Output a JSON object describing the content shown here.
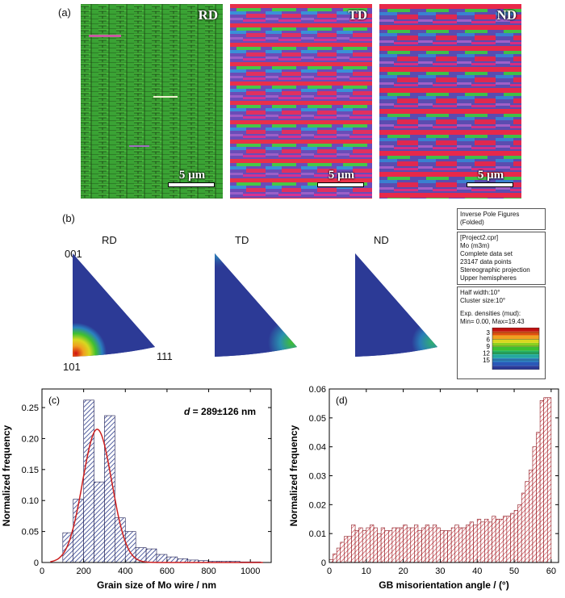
{
  "panel_a": {
    "label": "(a)",
    "maps": [
      {
        "name": "RD",
        "scale": "5 μm"
      },
      {
        "name": "TD",
        "scale": "5 μm"
      },
      {
        "name": "ND",
        "scale": "5 μm"
      }
    ]
  },
  "panel_b": {
    "label": "(b)",
    "ipf": [
      {
        "title": "RD",
        "corner_top": "001",
        "corner_left": "101",
        "corner_right": "111"
      },
      {
        "title": "TD"
      },
      {
        "title": "ND"
      }
    ],
    "legend": {
      "box1": [
        "Inverse Pole Figures",
        "(Folded)"
      ],
      "box2": [
        "[Project2.cpr]",
        "Mo (m3m)",
        "Complete data set",
        "23147 data points",
        "Stereographic projection",
        "Upper hemispheres"
      ],
      "box3": [
        "Half width:10°",
        "Cluster size:10°",
        "",
        "Exp. densities (mud):",
        "Min= 0.00, Max=19.43"
      ],
      "scale_ticks": [
        "3",
        "6",
        "9",
        "12",
        "15"
      ],
      "scale_colors": [
        "#2c3a96",
        "#2a58b8",
        "#2b82c0",
        "#25a7a0",
        "#25b060",
        "#3cc030",
        "#8ad020",
        "#d8d820",
        "#f0a020",
        "#e05010",
        "#c01010"
      ]
    }
  },
  "chart_data": [
    {
      "type": "bar",
      "panel_label": "(c)",
      "annotation_var": "d",
      "annotation_text": " = 289±126 nm",
      "xlabel": "Grain size of Mo wire / nm",
      "ylabel": "Normalized frequency",
      "xlim": [
        0,
        1100
      ],
      "ylim": [
        0,
        0.28
      ],
      "xticks": [
        0,
        200,
        400,
        600,
        800,
        1000
      ],
      "yticks": [
        0,
        0.05,
        0.1,
        0.15,
        0.2,
        0.25
      ],
      "ytick_labels": [
        "0",
        "0.05",
        "0.10",
        "0.15",
        "0.20",
        "0.25"
      ],
      "bin_width": 50,
      "bin_centers": [
        125,
        175,
        225,
        275,
        325,
        375,
        425,
        475,
        525,
        575,
        625,
        675,
        725,
        775,
        825,
        875,
        925,
        975,
        1025
      ],
      "values": [
        0.048,
        0.102,
        0.262,
        0.13,
        0.237,
        0.072,
        0.05,
        0.024,
        0.022,
        0.013,
        0.009,
        0.006,
        0.004,
        0.003,
        0.002,
        0.002,
        0.002,
        0.001,
        0.001
      ],
      "fit_curve": {
        "type": "gaussian",
        "mean": 265,
        "sd": 70,
        "peak": 0.215
      },
      "colors": {
        "bar": "#2b3a8a",
        "fit": "#cc2020"
      }
    },
    {
      "type": "bar",
      "panel_label": "(d)",
      "xlabel": "GB misorientation angle / (°)",
      "ylabel": "Normalized frequency",
      "xlim": [
        0,
        62
      ],
      "ylim": [
        0,
        0.06
      ],
      "xticks": [
        0,
        10,
        20,
        30,
        40,
        50,
        60
      ],
      "yticks": [
        0,
        0.01,
        0.02,
        0.03,
        0.04,
        0.05,
        0.06
      ],
      "ytick_labels": [
        "0",
        "0.01",
        "0.02",
        "0.03",
        "0.04",
        "0.05",
        "0.06"
      ],
      "bin_width": 1,
      "bin_centers": [
        0.5,
        1.5,
        2.5,
        3.5,
        4.5,
        5.5,
        6.5,
        7.5,
        8.5,
        9.5,
        10.5,
        11.5,
        12.5,
        13.5,
        14.5,
        15.5,
        16.5,
        17.5,
        18.5,
        19.5,
        20.5,
        21.5,
        22.5,
        23.5,
        24.5,
        25.5,
        26.5,
        27.5,
        28.5,
        29.5,
        30.5,
        31.5,
        32.5,
        33.5,
        34.5,
        35.5,
        36.5,
        37.5,
        38.5,
        39.5,
        40.5,
        41.5,
        42.5,
        43.5,
        44.5,
        45.5,
        46.5,
        47.5,
        48.5,
        49.5,
        50.5,
        51.5,
        52.5,
        53.5,
        54.5,
        55.5,
        56.5,
        57.5,
        58.5,
        59.5
      ],
      "values": [
        0.001,
        0.003,
        0.005,
        0.007,
        0.009,
        0.009,
        0.013,
        0.011,
        0.012,
        0.011,
        0.012,
        0.013,
        0.012,
        0.01,
        0.012,
        0.011,
        0.011,
        0.012,
        0.012,
        0.012,
        0.013,
        0.012,
        0.012,
        0.013,
        0.011,
        0.012,
        0.013,
        0.012,
        0.013,
        0.012,
        0.011,
        0.011,
        0.011,
        0.012,
        0.013,
        0.012,
        0.012,
        0.013,
        0.014,
        0.013,
        0.015,
        0.014,
        0.015,
        0.014,
        0.016,
        0.015,
        0.015,
        0.016,
        0.016,
        0.017,
        0.018,
        0.02,
        0.024,
        0.028,
        0.032,
        0.04,
        0.045,
        0.056,
        0.057,
        0.057
      ],
      "colors": {
        "bar": "#c8202a"
      }
    }
  ]
}
